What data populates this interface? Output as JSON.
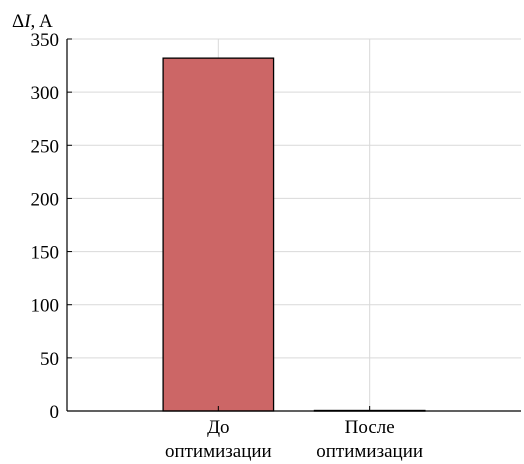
{
  "chart_data": {
    "type": "bar",
    "ylabel": "ΔI, A",
    "ylabel_prefix": "Δ",
    "ylabel_var": "I",
    "ylabel_suffix": ", A",
    "categories": [
      [
        "До",
        "оптимизации"
      ],
      [
        "После",
        "оптимизации"
      ]
    ],
    "values": [
      332,
      0.5
    ],
    "ylim": [
      0,
      350
    ],
    "yticks": [
      0,
      50,
      100,
      150,
      200,
      250,
      300,
      350
    ],
    "grid": true,
    "legend": "none",
    "colors": {
      "bar_fill": "#cc6666",
      "bar_stroke": "#000000",
      "grid": "#d9d9d9",
      "axis": "#000000"
    }
  }
}
